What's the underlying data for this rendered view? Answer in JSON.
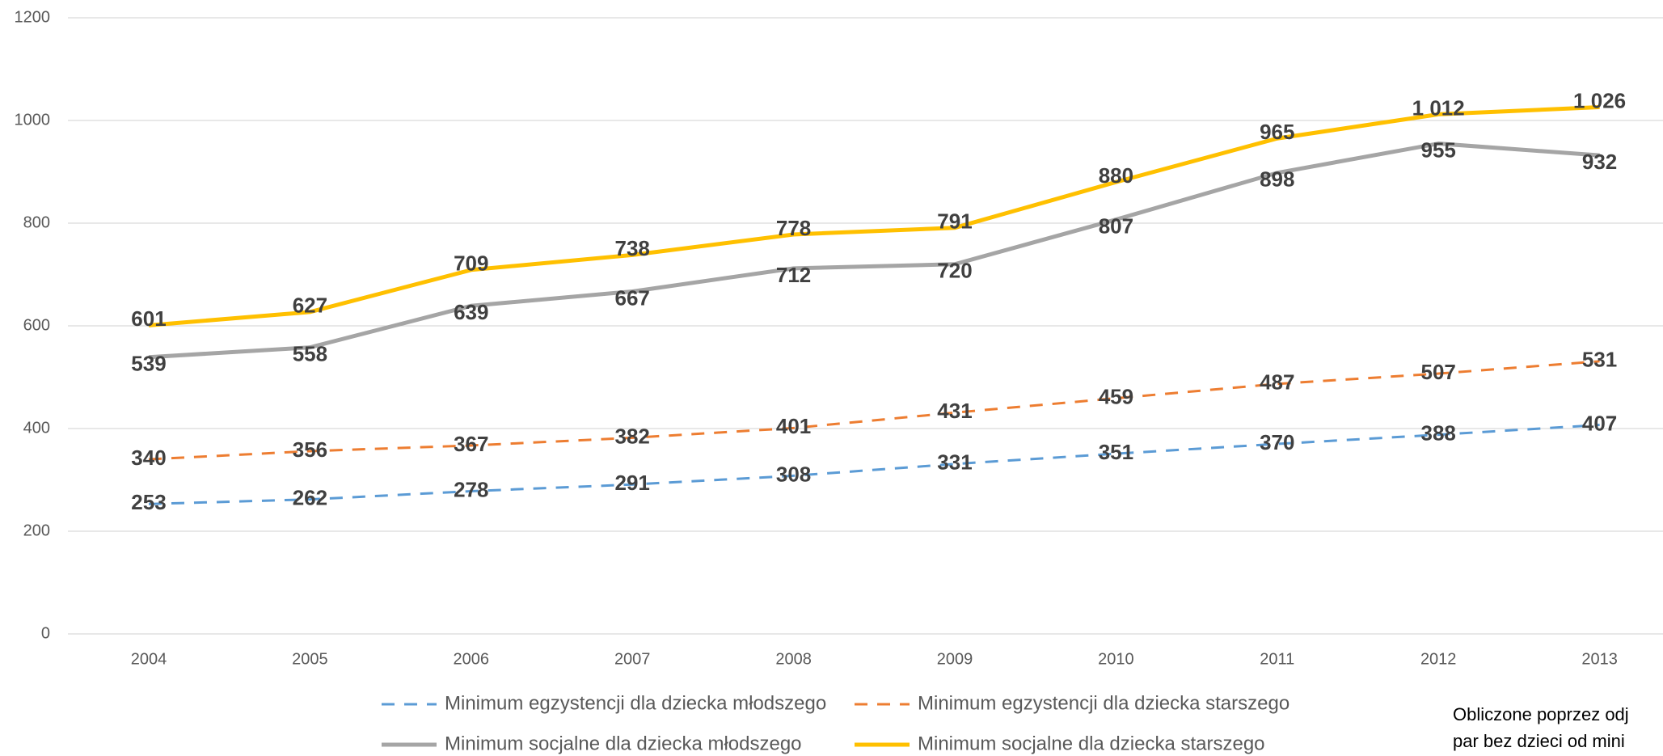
{
  "chart_data": {
    "type": "line",
    "categories": [
      "2004",
      "2005",
      "2006",
      "2007",
      "2008",
      "2009",
      "2010",
      "2011",
      "2012",
      "2013"
    ],
    "series": [
      {
        "name": "Minimum egzystencji dla dziecka młodszego",
        "color": "#5b9bd5",
        "style": "dashed",
        "values": [
          253,
          262,
          278,
          291,
          308,
          331,
          351,
          370,
          388,
          407
        ]
      },
      {
        "name": "Minimum egzystencji dla dziecka starszego",
        "color": "#ed7d31",
        "style": "dashed",
        "values": [
          340,
          356,
          367,
          382,
          401,
          431,
          459,
          487,
          507,
          531
        ]
      },
      {
        "name": "Minimum socjalne dla dziecka młodszego",
        "color": "#a5a5a5",
        "style": "solid",
        "values": [
          539,
          558,
          639,
          667,
          712,
          720,
          807,
          898,
          955,
          932
        ]
      },
      {
        "name": "Minimum socjalne dla dziecka starszego",
        "color": "#ffc000",
        "style": "solid",
        "values": [
          601,
          627,
          709,
          738,
          778,
          791,
          880,
          965,
          1012,
          1026
        ],
        "value_labels": [
          "601",
          "627",
          "709",
          "738",
          "778",
          "791",
          "880",
          "965",
          "1 012",
          "1 026"
        ]
      }
    ],
    "ylim": [
      0,
      1200
    ],
    "yticks": [
      0,
      200,
      400,
      600,
      800,
      1000,
      1200
    ],
    "grid": true,
    "note": [
      "Obliczone poprzez odj",
      "par bez dzieci od mini"
    ]
  }
}
